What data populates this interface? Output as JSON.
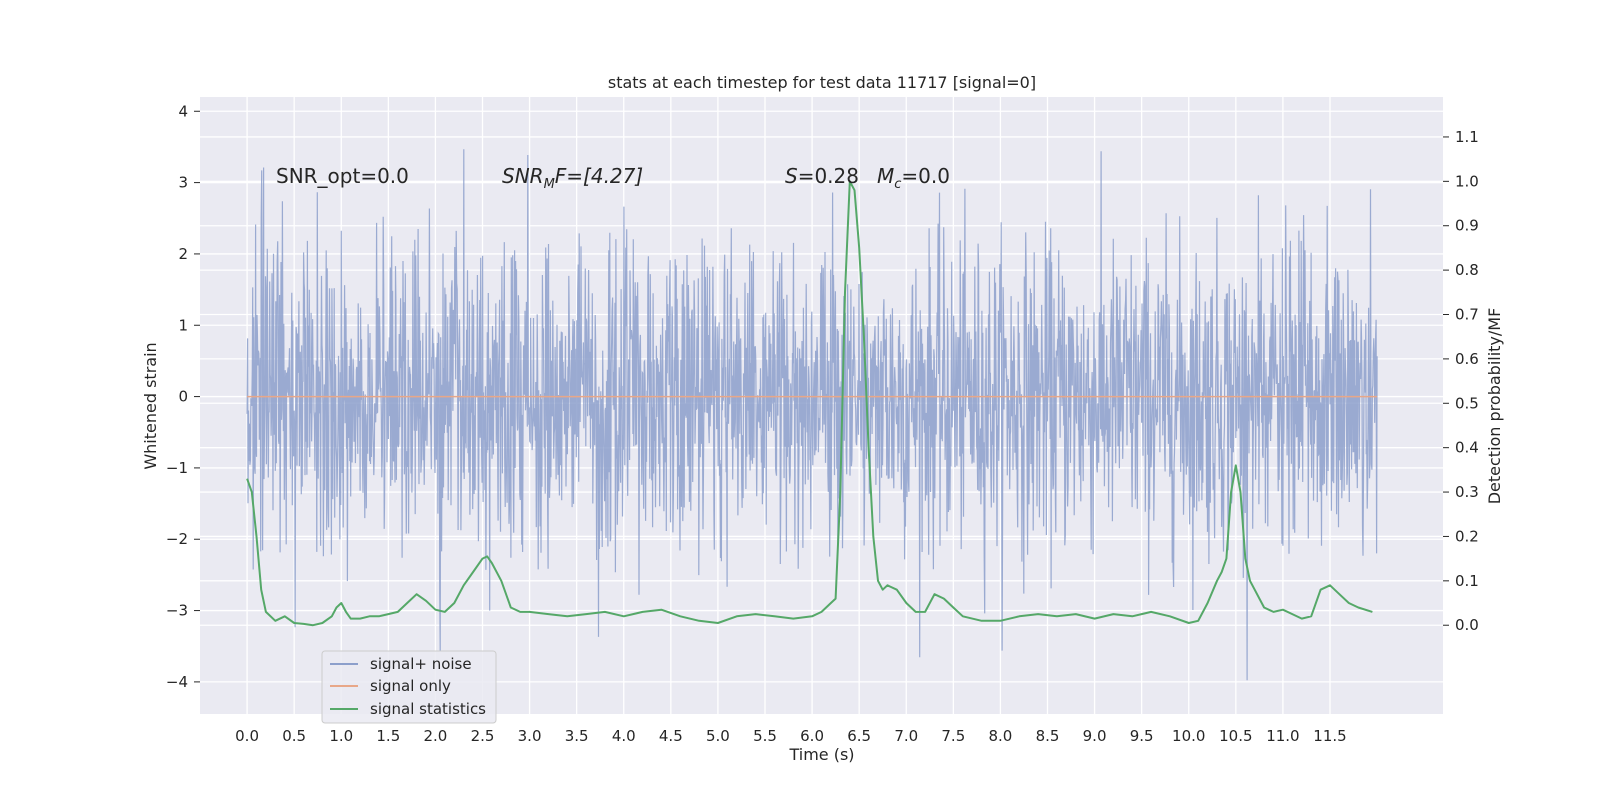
{
  "chart_data": {
    "type": "line",
    "title": "stats at each timestep for test data 11717 [signal=0]",
    "xlabel": "Time (s)",
    "ylabel": "Whitened strain",
    "y2label": "Detection probability/MF",
    "xlim": [
      -0.5,
      12.7
    ],
    "ylim": [
      -4.45,
      4.2
    ],
    "y2lim": [
      -0.2,
      1.19
    ],
    "x_ticks": [
      0.0,
      0.5,
      1.0,
      1.5,
      2.0,
      2.5,
      3.0,
      3.5,
      4.0,
      4.5,
      5.0,
      5.5,
      6.0,
      6.5,
      7.0,
      7.5,
      8.0,
      8.5,
      9.0,
      9.5,
      10.0,
      10.5,
      11.0,
      11.5
    ],
    "x_tick_labels": [
      "0.0",
      "0.5",
      "1.0",
      "1.5",
      "2.0",
      "2.5",
      "3.0",
      "3.5",
      "4.0",
      "4.5",
      "5.0",
      "5.5",
      "6.0",
      "6.5",
      "7.0",
      "7.5",
      "8.0",
      "8.5",
      "9.0",
      "9.5",
      "10.0",
      "10.5",
      "11.0",
      "11.5"
    ],
    "y_ticks": [
      -4,
      -3,
      -2,
      -1,
      0,
      1,
      2,
      3,
      4
    ],
    "y_tick_labels": [
      "−4",
      "−3",
      "−2",
      "−1",
      "0",
      "1",
      "2",
      "3",
      "4"
    ],
    "y2_ticks": [
      0.0,
      0.1,
      0.2,
      0.3,
      0.4,
      0.5,
      0.6,
      0.7,
      0.8,
      0.9,
      1.0,
      1.1
    ],
    "y2_tick_labels": [
      "0.0",
      "0.1",
      "0.2",
      "0.3",
      "0.4",
      "0.5",
      "0.6",
      "0.7",
      "0.8",
      "0.9",
      "1.0",
      "1.1"
    ],
    "grid": true,
    "legend_position": "lower-left",
    "annotations": {
      "snr_opt": "SNR_opt=0.0",
      "snr_mf_base": "SNR",
      "snr_mf_sub": "M",
      "snr_mf_rest": "F=[4.27]",
      "s_var": "S",
      "s_value": "=0.28",
      "mc_var": "M",
      "mc_sub": "c",
      "mc_value": "=0.0"
    },
    "series": [
      {
        "name": "signal+ noise",
        "axis": "left",
        "color": "#8c9fcb",
        "x_range": [
          0.0,
          12.0
        ],
        "typical_range": [
          -1.9,
          1.9
        ],
        "extremes_range": [
          -4.1,
          3.8
        ]
      },
      {
        "name": "signal only",
        "axis": "left",
        "color": "#e8a788",
        "x": [
          0.0,
          12.0
        ],
        "y": [
          0.0,
          0.0
        ]
      },
      {
        "name": "signal statistics",
        "axis": "right",
        "color": "#55a868",
        "x": [
          0.0,
          0.05,
          0.1,
          0.15,
          0.2,
          0.3,
          0.4,
          0.5,
          0.6,
          0.7,
          0.8,
          0.9,
          0.95,
          1.0,
          1.05,
          1.1,
          1.2,
          1.3,
          1.4,
          1.5,
          1.6,
          1.7,
          1.8,
          1.9,
          2.0,
          2.1,
          2.2,
          2.3,
          2.4,
          2.5,
          2.55,
          2.6,
          2.7,
          2.8,
          2.9,
          3.0,
          3.2,
          3.4,
          3.6,
          3.8,
          4.0,
          4.2,
          4.4,
          4.6,
          4.8,
          5.0,
          5.2,
          5.4,
          5.6,
          5.8,
          6.0,
          6.1,
          6.2,
          6.25,
          6.3,
          6.35,
          6.4,
          6.45,
          6.5,
          6.55,
          6.6,
          6.65,
          6.7,
          6.75,
          6.8,
          6.9,
          7.0,
          7.1,
          7.2,
          7.3,
          7.4,
          7.5,
          7.6,
          7.8,
          8.0,
          8.2,
          8.4,
          8.6,
          8.8,
          9.0,
          9.2,
          9.4,
          9.6,
          9.8,
          10.0,
          10.1,
          10.2,
          10.3,
          10.35,
          10.4,
          10.45,
          10.5,
          10.55,
          10.6,
          10.65,
          10.7,
          10.8,
          10.9,
          11.0,
          11.1,
          11.2,
          11.3,
          11.4,
          11.5,
          11.6,
          11.7,
          11.8,
          11.95
        ],
        "y": [
          0.33,
          0.3,
          0.2,
          0.08,
          0.03,
          0.01,
          0.02,
          0.005,
          0.003,
          0.0,
          0.005,
          0.02,
          0.04,
          0.05,
          0.03,
          0.015,
          0.015,
          0.02,
          0.02,
          0.025,
          0.03,
          0.05,
          0.07,
          0.055,
          0.035,
          0.03,
          0.05,
          0.09,
          0.12,
          0.15,
          0.155,
          0.14,
          0.1,
          0.04,
          0.03,
          0.03,
          0.025,
          0.02,
          0.025,
          0.03,
          0.02,
          0.03,
          0.035,
          0.02,
          0.01,
          0.005,
          0.02,
          0.025,
          0.02,
          0.015,
          0.02,
          0.03,
          0.05,
          0.06,
          0.3,
          0.75,
          1.0,
          0.98,
          0.85,
          0.65,
          0.4,
          0.2,
          0.1,
          0.08,
          0.09,
          0.08,
          0.05,
          0.03,
          0.03,
          0.07,
          0.06,
          0.04,
          0.02,
          0.01,
          0.01,
          0.02,
          0.025,
          0.02,
          0.025,
          0.015,
          0.025,
          0.02,
          0.03,
          0.02,
          0.005,
          0.01,
          0.05,
          0.1,
          0.12,
          0.15,
          0.3,
          0.36,
          0.3,
          0.15,
          0.1,
          0.08,
          0.04,
          0.03,
          0.035,
          0.025,
          0.015,
          0.02,
          0.08,
          0.09,
          0.07,
          0.05,
          0.04,
          0.03
        ]
      }
    ]
  }
}
